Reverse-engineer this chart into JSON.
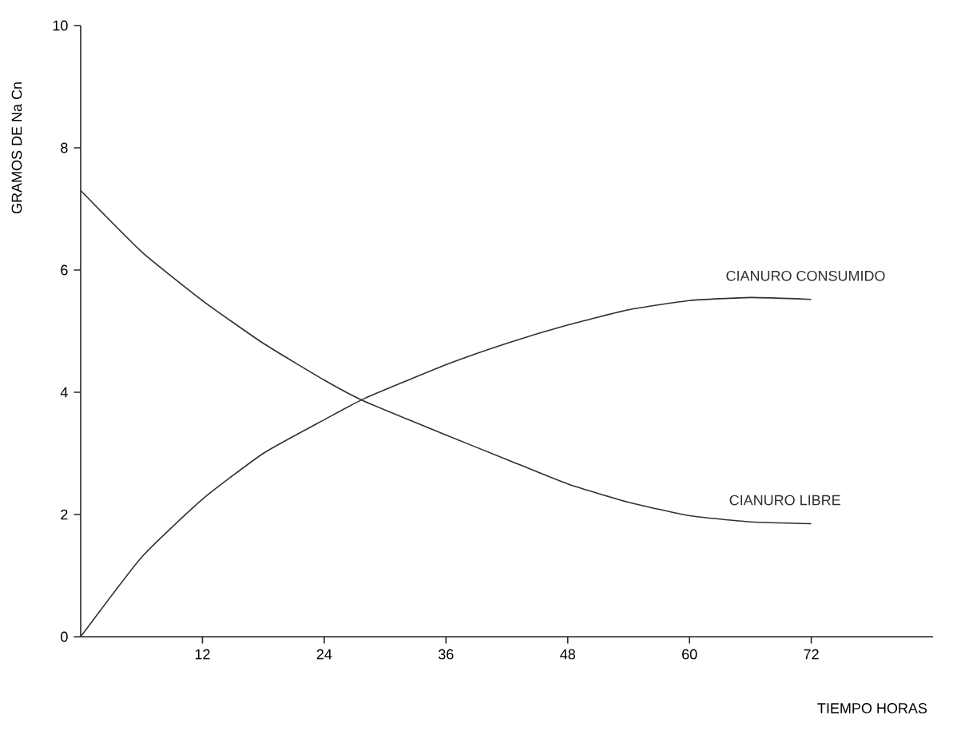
{
  "chart_data": {
    "type": "line",
    "xlabel": "TIEMPO   HORAS",
    "ylabel": "GRAMOS  DE   Na Cn",
    "xlim": [
      0,
      84
    ],
    "ylim": [
      0,
      10
    ],
    "xticks": [
      12,
      24,
      36,
      48,
      60,
      72
    ],
    "yticks": [
      0,
      2,
      4,
      6,
      8,
      10
    ],
    "grid": false,
    "marker": "none",
    "line_style": "solid",
    "series": [
      {
        "name": "CIANURO  CONSUMIDO",
        "color": "#303030",
        "x": [
          0,
          6,
          12,
          18,
          24,
          28,
          36,
          42,
          48,
          54,
          60,
          66,
          72
        ],
        "values": [
          0,
          1.3,
          2.25,
          3.0,
          3.55,
          3.9,
          4.45,
          4.8,
          5.1,
          5.35,
          5.5,
          5.55,
          5.52
        ]
      },
      {
        "name": "CIANURO  LIBRE",
        "color": "#303030",
        "x": [
          0,
          6,
          12,
          18,
          24,
          28,
          36,
          42,
          48,
          54,
          60,
          66,
          72
        ],
        "values": [
          7.3,
          6.3,
          5.5,
          4.8,
          4.2,
          3.85,
          3.3,
          2.9,
          2.5,
          2.2,
          1.98,
          1.88,
          1.85
        ]
      }
    ]
  }
}
